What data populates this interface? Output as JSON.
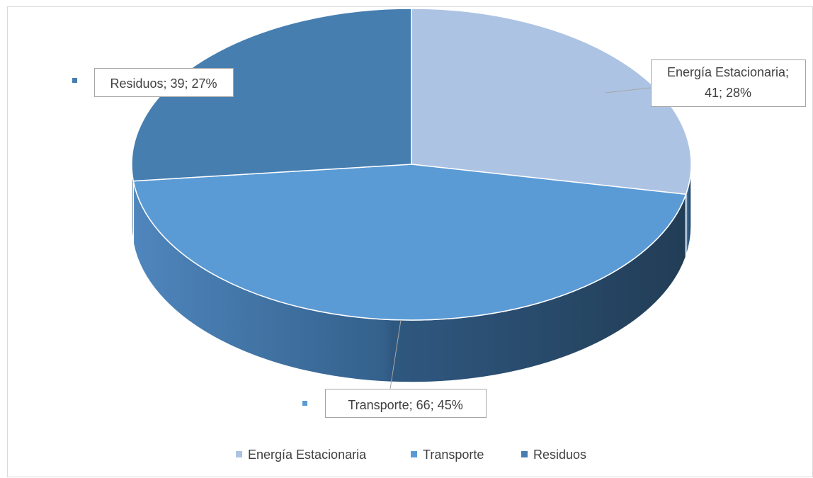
{
  "chart_data": {
    "type": "pie",
    "style": "3d",
    "categories": [
      "Energía Estacionaria",
      "Transporte",
      "Residuos"
    ],
    "values": [
      41,
      66,
      39
    ],
    "percentages": [
      28,
      45,
      27
    ],
    "colors": [
      "#adc3e3",
      "#5b9bd5",
      "#467eb0"
    ],
    "data_labels": [
      "Energía Estacionaria; 41; 28%",
      "Transporte; 66; 45%",
      "Residuos; 39; 27%"
    ],
    "legend": {
      "position": "bottom",
      "entries": [
        "Energía Estacionaria",
        "Transporte",
        "Residuos"
      ]
    }
  }
}
